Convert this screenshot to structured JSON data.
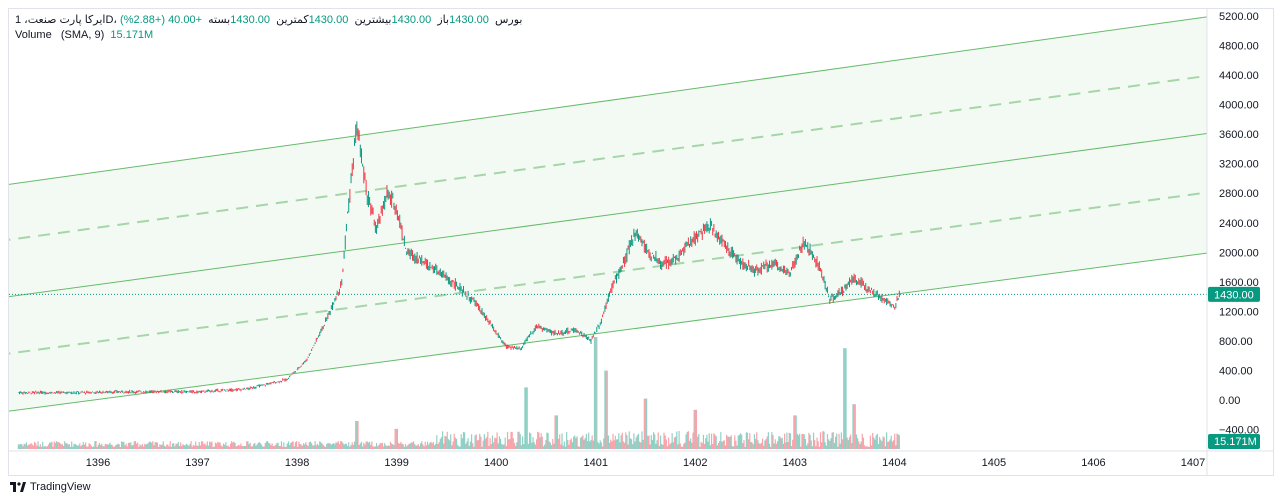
{
  "legend": {
    "symbol_line": "ایرکا پارت صنعت، 1D، بورس",
    "open_label": "باز",
    "open_value": "1430.00",
    "high_label": "بیشترین",
    "high_value": "1430.00",
    "low_label": "کمترین",
    "low_value": "1430.00",
    "close_label": "بسته",
    "close_value": "1430.00",
    "change": "+40.00 (+2.88%)",
    "volume_label": "Volume",
    "volume_params": "(SMA, 9)",
    "volume_value": "15.171M"
  },
  "footer": {
    "brand": "TradingView",
    "logo_icon": "tradingview-logo-icon"
  },
  "colors": {
    "up": "#089981",
    "down": "#f23645",
    "channel": "#4caf50",
    "bg_fill": "#eef8ee"
  },
  "chart_data": {
    "type": "candlestick",
    "y_axis_ticks": [
      "5200.00",
      "4800.00",
      "4400.00",
      "4000.00",
      "3600.00",
      "3200.00",
      "2800.00",
      "2400.00",
      "2000.00",
      "1600.00",
      "1200.00",
      "800.00",
      "400.00",
      "0.00",
      "−400.00"
    ],
    "y_ticks_values": [
      5200,
      4800,
      4400,
      4000,
      3600,
      3200,
      2800,
      2400,
      2000,
      1600,
      1200,
      800,
      400,
      0,
      -400
    ],
    "x_axis_labels": [
      "1396",
      "1397",
      "1398",
      "1399",
      "1400",
      "1401",
      "1402",
      "1403",
      "1404",
      "1405",
      "1406",
      "1407"
    ],
    "x_axis_values": [
      1396,
      1397,
      1398,
      1399,
      1400,
      1401,
      1402,
      1403,
      1404,
      1405,
      1406,
      1407
    ],
    "last_price_label": "1430.00",
    "last_price": 1430,
    "volume_label": "15.171M",
    "price_path": [
      [
        1395.2,
        100
      ],
      [
        1395.8,
        100
      ],
      [
        1396.2,
        110
      ],
      [
        1396.6,
        115
      ],
      [
        1397.0,
        110
      ],
      [
        1397.5,
        150
      ],
      [
        1397.9,
        280
      ],
      [
        1398.1,
        550
      ],
      [
        1398.3,
        1100
      ],
      [
        1398.45,
        1600
      ],
      [
        1398.5,
        2400
      ],
      [
        1398.6,
        3700
      ],
      [
        1398.7,
        2800
      ],
      [
        1398.8,
        2300
      ],
      [
        1398.9,
        2800
      ],
      [
        1399.0,
        2600
      ],
      [
        1399.1,
        2000
      ],
      [
        1399.3,
        1850
      ],
      [
        1399.6,
        1550
      ],
      [
        1399.8,
        1300
      ],
      [
        1399.9,
        1100
      ],
      [
        1400.1,
        720
      ],
      [
        1400.25,
        700
      ],
      [
        1400.4,
        1000
      ],
      [
        1400.6,
        900
      ],
      [
        1400.8,
        950
      ],
      [
        1400.95,
        800
      ],
      [
        1401.05,
        1050
      ],
      [
        1401.15,
        1500
      ],
      [
        1401.3,
        1900
      ],
      [
        1401.4,
        2300
      ],
      [
        1401.5,
        2050
      ],
      [
        1401.65,
        1850
      ],
      [
        1401.8,
        1900
      ],
      [
        1402.0,
        2200
      ],
      [
        1402.15,
        2350
      ],
      [
        1402.3,
        2100
      ],
      [
        1402.45,
        1850
      ],
      [
        1402.6,
        1750
      ],
      [
        1402.8,
        1850
      ],
      [
        1402.95,
        1700
      ],
      [
        1403.1,
        2150
      ],
      [
        1403.25,
        1800
      ],
      [
        1403.35,
        1350
      ],
      [
        1403.5,
        1500
      ],
      [
        1403.6,
        1650
      ],
      [
        1403.75,
        1500
      ],
      [
        1403.9,
        1350
      ],
      [
        1404.0,
        1250
      ],
      [
        1404.05,
        1430
      ]
    ],
    "volume_spikes": [
      [
        1398.6,
        0.25
      ],
      [
        1399.0,
        0.18
      ],
      [
        1400.3,
        0.55
      ],
      [
        1400.6,
        0.3
      ],
      [
        1401.0,
        1.0
      ],
      [
        1401.1,
        0.7
      ],
      [
        1401.5,
        0.45
      ],
      [
        1402.0,
        0.35
      ],
      [
        1403.0,
        0.3
      ],
      [
        1403.5,
        0.9
      ],
      [
        1403.6,
        0.4
      ]
    ],
    "channel": {
      "start_x": 1395.0,
      "end_x": 1407.2,
      "lines": [
        {
          "start": 2900,
          "end": 5200,
          "style": "solid"
        },
        {
          "start": 2150,
          "end": 4400,
          "style": "dashed"
        },
        {
          "start": 1380,
          "end": 3620,
          "style": "solid"
        },
        {
          "start": 610,
          "end": 2820,
          "style": "dashed"
        },
        {
          "start": -170,
          "end": 2000,
          "style": "solid"
        }
      ]
    }
  }
}
